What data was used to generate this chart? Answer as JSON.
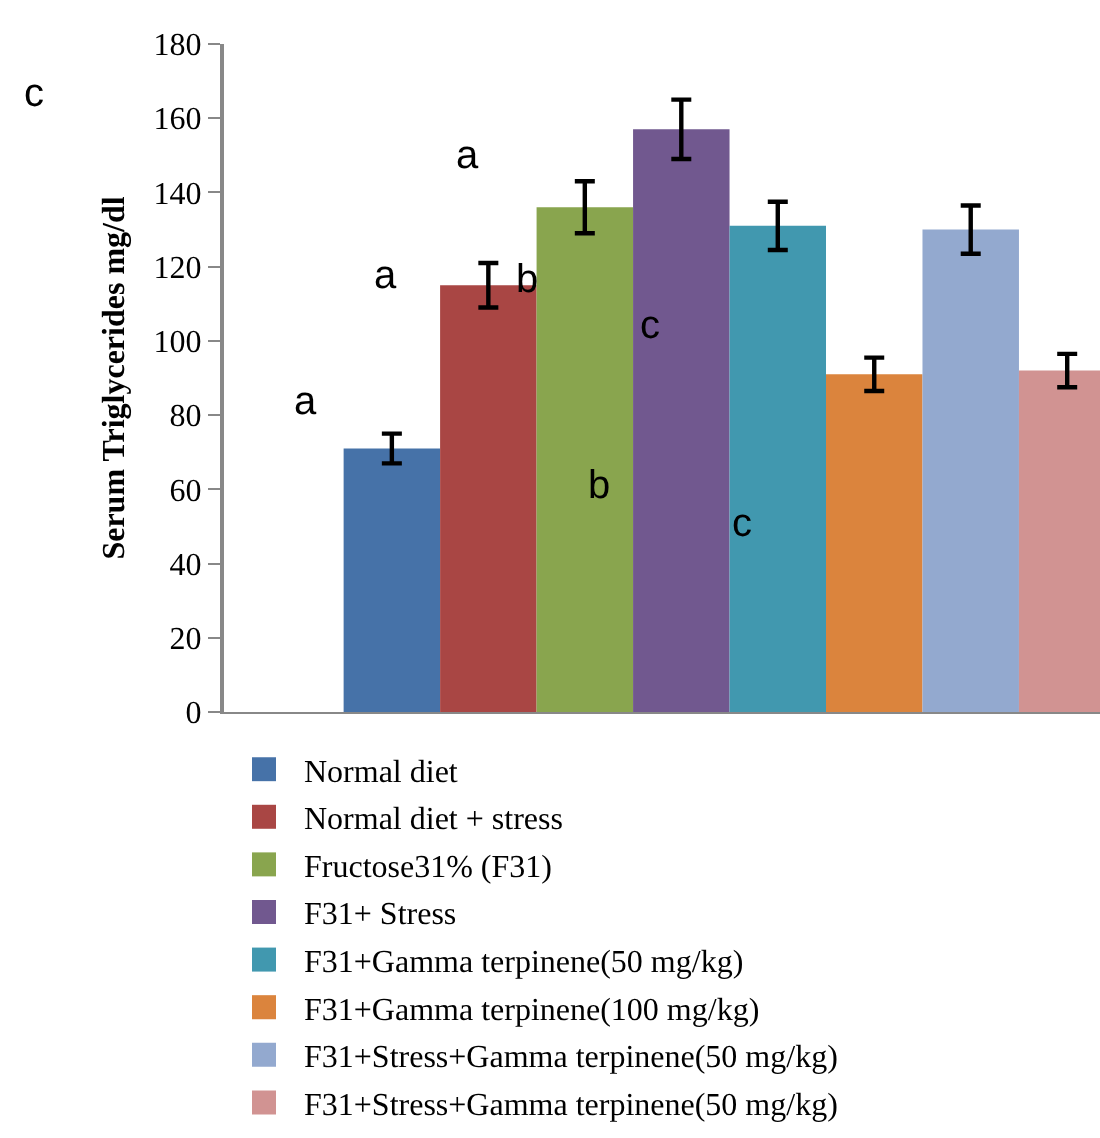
{
  "chart_data": {
    "type": "bar",
    "ylabel": "Serum Triglycerides mg/dl",
    "categories": [
      null
    ],
    "ylim": [
      0,
      180
    ],
    "yticks": [
      0,
      20,
      40,
      60,
      80,
      100,
      120,
      140,
      160,
      180
    ],
    "grid": false,
    "legend": "bottom",
    "series": [
      {
        "name": "Normal diet",
        "color": "#4672a8",
        "values": [
          71
        ],
        "errors": [
          4
        ]
      },
      {
        "name": "Normal diet + stress",
        "color": "#a94644",
        "values": [
          115
        ],
        "errors": [
          6
        ]
      },
      {
        "name": "Fructose31% (F31)",
        "color": "#89a54e",
        "values": [
          136
        ],
        "errors": [
          7
        ]
      },
      {
        "name": "F31+ Stress",
        "color": "#71588f",
        "values": [
          157
        ],
        "errors": [
          8
        ]
      },
      {
        "name": "F31+Gamma terpinene(50 mg/kg)",
        "color": "#4198af",
        "values": [
          131
        ],
        "errors": [
          6.5
        ]
      },
      {
        "name": "F31+Gamma terpinene(100 mg/kg)",
        "color": "#db843d",
        "values": [
          91
        ],
        "errors": [
          4.5
        ]
      },
      {
        "name": "F31+Stress+Gamma terpinene(50 mg/kg)",
        "color": "#93a9cf",
        "values": [
          130
        ],
        "errors": [
          6.5
        ]
      },
      {
        "name": "F31+Stress+Gamma terpinene(50 mg/kg)",
        "color": "#d19392",
        "values": [
          92
        ],
        "errors": [
          4.5
        ]
      }
    ],
    "annotations": [
      "c",
      "a",
      "a",
      "b",
      "c",
      "a",
      "b",
      "c"
    ]
  }
}
